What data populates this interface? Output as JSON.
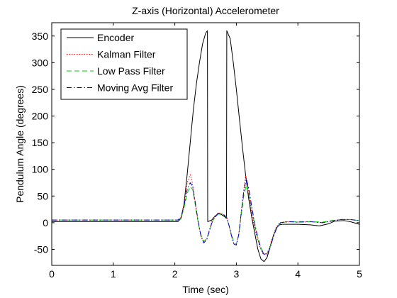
{
  "chart_data": {
    "type": "line",
    "title": "Z-axis (Horizontal) Accelerometer",
    "xlabel": "Time (sec)",
    "ylabel": "Pendulum Angle (degrees)",
    "xlim": [
      0,
      5
    ],
    "ylim": [
      -80,
      375
    ],
    "xticks": [
      "0",
      "1",
      "2",
      "3",
      "4",
      "5"
    ],
    "yticks": [
      "-50",
      "0",
      "50",
      "100",
      "150",
      "200",
      "250",
      "300",
      "350"
    ],
    "xtick_values": [
      0,
      1,
      2,
      3,
      4,
      5
    ],
    "ytick_values": [
      -50,
      0,
      50,
      100,
      150,
      200,
      250,
      300,
      350
    ],
    "grid": false,
    "legend_position": "top-left",
    "series": [
      {
        "name": "Encoder",
        "color": "#000000",
        "style": "solid",
        "points": [
          [
            0,
            2
          ],
          [
            2.05,
            2
          ],
          [
            2.1,
            8
          ],
          [
            2.15,
            35
          ],
          [
            2.2,
            90
          ],
          [
            2.25,
            150
          ],
          [
            2.3,
            210
          ],
          [
            2.35,
            260
          ],
          [
            2.4,
            300
          ],
          [
            2.45,
            335
          ],
          [
            2.5,
            355
          ],
          [
            2.53,
            360
          ],
          [
            2.535,
            2
          ],
          [
            2.6,
            5
          ],
          [
            2.65,
            12
          ],
          [
            2.72,
            18
          ],
          [
            2.8,
            12
          ],
          [
            2.84,
            8
          ],
          [
            2.845,
            360
          ],
          [
            2.9,
            345
          ],
          [
            2.95,
            300
          ],
          [
            3.0,
            250
          ],
          [
            3.05,
            195
          ],
          [
            3.1,
            140
          ],
          [
            3.15,
            90
          ],
          [
            3.2,
            45
          ],
          [
            3.25,
            10
          ],
          [
            3.3,
            -20
          ],
          [
            3.35,
            -50
          ],
          [
            3.4,
            -68
          ],
          [
            3.45,
            -73
          ],
          [
            3.5,
            -65
          ],
          [
            3.55,
            -45
          ],
          [
            3.6,
            -25
          ],
          [
            3.65,
            -10
          ],
          [
            3.7,
            -4
          ],
          [
            3.75,
            -3
          ],
          [
            3.85,
            -3
          ],
          [
            4.0,
            -3
          ],
          [
            4.2,
            -4
          ],
          [
            4.35,
            -6
          ],
          [
            4.5,
            -2
          ],
          [
            4.6,
            3
          ],
          [
            4.75,
            4
          ],
          [
            4.85,
            2
          ],
          [
            5.0,
            -3
          ]
        ]
      },
      {
        "name": "Kalman Filter",
        "color": "#ff0000",
        "style": "dotted",
        "points": [
          [
            0,
            5
          ],
          [
            2.05,
            5
          ],
          [
            2.1,
            10
          ],
          [
            2.15,
            35
          ],
          [
            2.2,
            75
          ],
          [
            2.25,
            90
          ],
          [
            2.28,
            78
          ],
          [
            2.32,
            45
          ],
          [
            2.38,
            0
          ],
          [
            2.42,
            -25
          ],
          [
            2.47,
            -37
          ],
          [
            2.52,
            -30
          ],
          [
            2.57,
            -10
          ],
          [
            2.62,
            8
          ],
          [
            2.7,
            18
          ],
          [
            2.78,
            16
          ],
          [
            2.84,
            12
          ],
          [
            2.88,
            -5
          ],
          [
            2.92,
            -25
          ],
          [
            2.96,
            -40
          ],
          [
            3.0,
            -42
          ],
          [
            3.04,
            -20
          ],
          [
            3.08,
            20
          ],
          [
            3.12,
            60
          ],
          [
            3.15,
            88
          ],
          [
            3.18,
            75
          ],
          [
            3.22,
            40
          ],
          [
            3.27,
            5
          ],
          [
            3.33,
            -25
          ],
          [
            3.38,
            -45
          ],
          [
            3.43,
            -58
          ],
          [
            3.48,
            -60
          ],
          [
            3.53,
            -50
          ],
          [
            3.58,
            -30
          ],
          [
            3.64,
            -10
          ],
          [
            3.7,
            0
          ],
          [
            3.8,
            2
          ],
          [
            4.0,
            1
          ],
          [
            4.2,
            2
          ],
          [
            4.4,
            0
          ],
          [
            4.55,
            3
          ],
          [
            4.7,
            6
          ],
          [
            4.85,
            6
          ],
          [
            5.0,
            4
          ]
        ]
      },
      {
        "name": "Low Pass Filter",
        "color": "#00cc00",
        "style": "dashed",
        "points": [
          [
            0,
            5
          ],
          [
            2.05,
            5
          ],
          [
            2.1,
            8
          ],
          [
            2.15,
            28
          ],
          [
            2.2,
            55
          ],
          [
            2.25,
            68
          ],
          [
            2.29,
            62
          ],
          [
            2.33,
            35
          ],
          [
            2.38,
            0
          ],
          [
            2.42,
            -22
          ],
          [
            2.47,
            -35
          ],
          [
            2.52,
            -30
          ],
          [
            2.57,
            -12
          ],
          [
            2.62,
            5
          ],
          [
            2.7,
            16
          ],
          [
            2.78,
            15
          ],
          [
            2.84,
            10
          ],
          [
            2.88,
            -5
          ],
          [
            2.92,
            -22
          ],
          [
            2.96,
            -38
          ],
          [
            3.0,
            -40
          ],
          [
            3.04,
            -22
          ],
          [
            3.08,
            15
          ],
          [
            3.12,
            50
          ],
          [
            3.16,
            70
          ],
          [
            3.2,
            55
          ],
          [
            3.25,
            25
          ],
          [
            3.3,
            -5
          ],
          [
            3.35,
            -30
          ],
          [
            3.4,
            -48
          ],
          [
            3.45,
            -58
          ],
          [
            3.5,
            -58
          ],
          [
            3.55,
            -45
          ],
          [
            3.6,
            -25
          ],
          [
            3.66,
            -8
          ],
          [
            3.72,
            0
          ],
          [
            3.85,
            2
          ],
          [
            4.0,
            2
          ],
          [
            4.2,
            2
          ],
          [
            4.4,
            1
          ],
          [
            4.55,
            4
          ],
          [
            4.7,
            6
          ],
          [
            4.85,
            6
          ],
          [
            5.0,
            4
          ]
        ]
      },
      {
        "name": "Moving Avg Filter",
        "color": "#0000cc",
        "style": "dashdot",
        "points": [
          [
            0,
            5
          ],
          [
            2.05,
            5
          ],
          [
            2.1,
            10
          ],
          [
            2.15,
            32
          ],
          [
            2.2,
            62
          ],
          [
            2.25,
            75
          ],
          [
            2.29,
            68
          ],
          [
            2.33,
            40
          ],
          [
            2.38,
            2
          ],
          [
            2.42,
            -22
          ],
          [
            2.47,
            -38
          ],
          [
            2.52,
            -32
          ],
          [
            2.57,
            -12
          ],
          [
            2.62,
            6
          ],
          [
            2.7,
            17
          ],
          [
            2.78,
            16
          ],
          [
            2.84,
            11
          ],
          [
            2.88,
            -5
          ],
          [
            2.92,
            -24
          ],
          [
            2.96,
            -40
          ],
          [
            3.0,
            -42
          ],
          [
            3.04,
            -22
          ],
          [
            3.08,
            18
          ],
          [
            3.12,
            58
          ],
          [
            3.16,
            82
          ],
          [
            3.2,
            65
          ],
          [
            3.25,
            30
          ],
          [
            3.3,
            -2
          ],
          [
            3.35,
            -28
          ],
          [
            3.4,
            -48
          ],
          [
            3.45,
            -60
          ],
          [
            3.5,
            -60
          ],
          [
            3.55,
            -47
          ],
          [
            3.6,
            -27
          ],
          [
            3.66,
            -9
          ],
          [
            3.72,
            0
          ],
          [
            3.85,
            2
          ],
          [
            4.0,
            1
          ],
          [
            4.2,
            2
          ],
          [
            4.4,
            0
          ],
          [
            4.55,
            3
          ],
          [
            4.7,
            6
          ],
          [
            4.85,
            6
          ],
          [
            5.0,
            4
          ]
        ]
      }
    ]
  }
}
